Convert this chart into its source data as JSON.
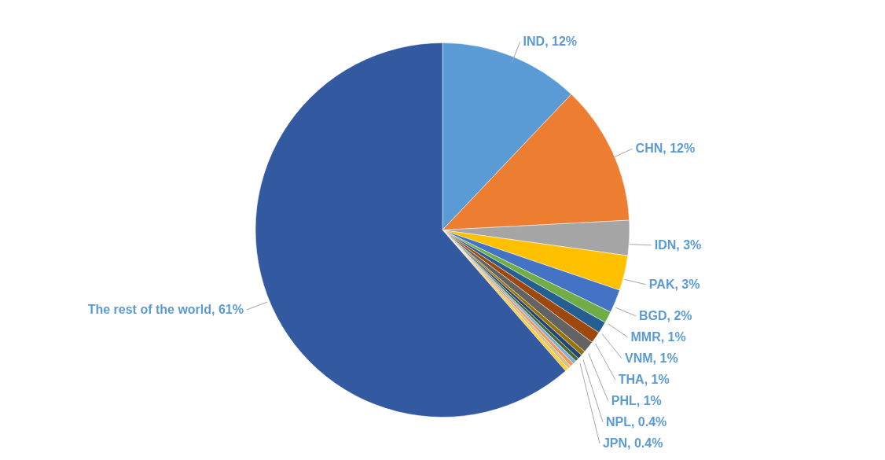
{
  "chart_data": {
    "type": "pie",
    "categories": [
      "IND",
      "CHN",
      "IDN",
      "PAK",
      "BGD",
      "MMR",
      "VNM",
      "THA",
      "PHL",
      "NPL",
      "JPN",
      null,
      null,
      null,
      null,
      null,
      "The rest of the world"
    ],
    "values": [
      12,
      12,
      3,
      3,
      2,
      1,
      1,
      1,
      1,
      0.4,
      0.4,
      0.3,
      0.3,
      0.3,
      0.3,
      0.3,
      61
    ],
    "colors": [
      "#5b9bd5",
      "#ed7d31",
      "#a5a5a5",
      "#ffc000",
      "#4472c4",
      "#70ad47",
      "#255e91",
      "#9e480e",
      "#636363",
      "#997300",
      "#264478",
      "#43682b",
      "#7cafdd",
      "#f1975a",
      "#d8c08a",
      "#ffcd33",
      "#335aa0"
    ],
    "value_labels": [
      "12%",
      "12%",
      "3%",
      "3%",
      "2%",
      "1%",
      "1%",
      "1%",
      "1%",
      "0.4%",
      "0.4%",
      null,
      null,
      null,
      null,
      null,
      "61%"
    ]
  }
}
